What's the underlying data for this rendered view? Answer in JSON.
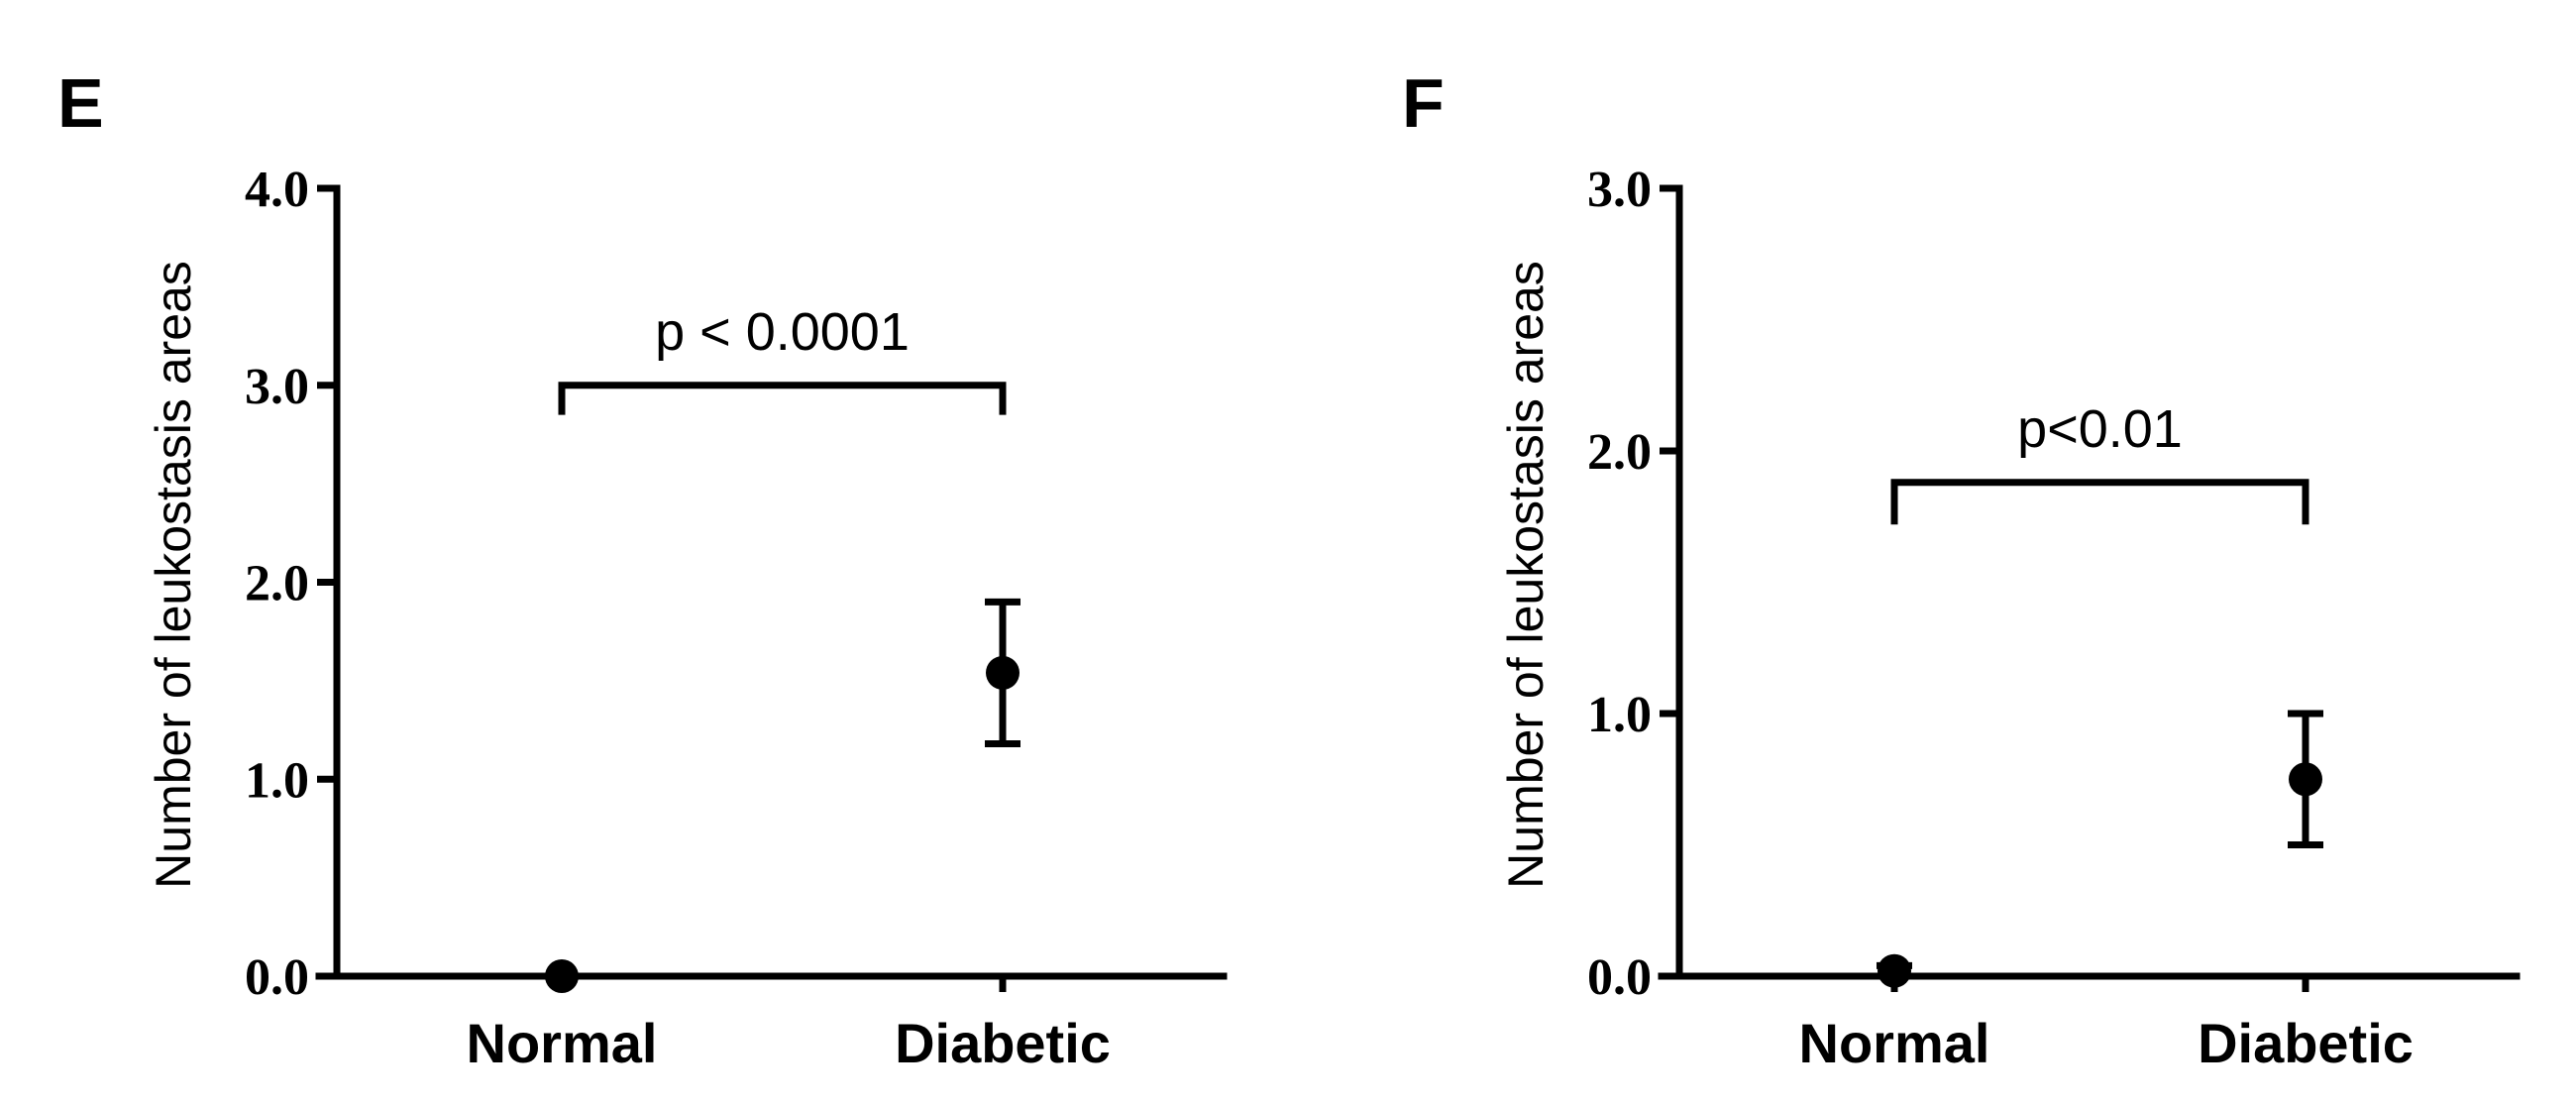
{
  "chart_data": [
    {
      "type": "scatter",
      "panel": "E",
      "ylabel": "Number of leukostasis areas",
      "xlabel": "",
      "categories": [
        "Normal",
        "Diabetic"
      ],
      "ylim": [
        0,
        4
      ],
      "yticks": [
        0,
        1,
        2,
        3,
        4
      ],
      "ytick_labels": [
        "0.0",
        "1.0",
        "2.0",
        "3.0",
        "4.0"
      ],
      "series": [
        {
          "values": [
            0.0,
            1.54
          ],
          "err_low": [
            0.0,
            1.18
          ],
          "err_high": [
            0.0,
            1.9
          ]
        }
      ],
      "annotation": {
        "text": "p < 0.0001",
        "bracket_y": 3.0,
        "bracket_drop": 2.85
      }
    },
    {
      "type": "scatter",
      "panel": "F",
      "ylabel": "Number of leukostasis areas",
      "xlabel": "",
      "categories": [
        "Normal",
        "Diabetic"
      ],
      "ylim": [
        0,
        3
      ],
      "yticks": [
        0,
        1,
        2,
        3
      ],
      "ytick_labels": [
        "0.0",
        "1.0",
        "2.0",
        "3.0"
      ],
      "series": [
        {
          "values": [
            0.02,
            0.75
          ],
          "err_low": [
            0.0,
            0.5
          ],
          "err_high": [
            0.04,
            1.0
          ]
        }
      ],
      "annotation": {
        "text": "p<0.01",
        "bracket_y": 1.88,
        "bracket_drop": 1.72
      }
    }
  ]
}
